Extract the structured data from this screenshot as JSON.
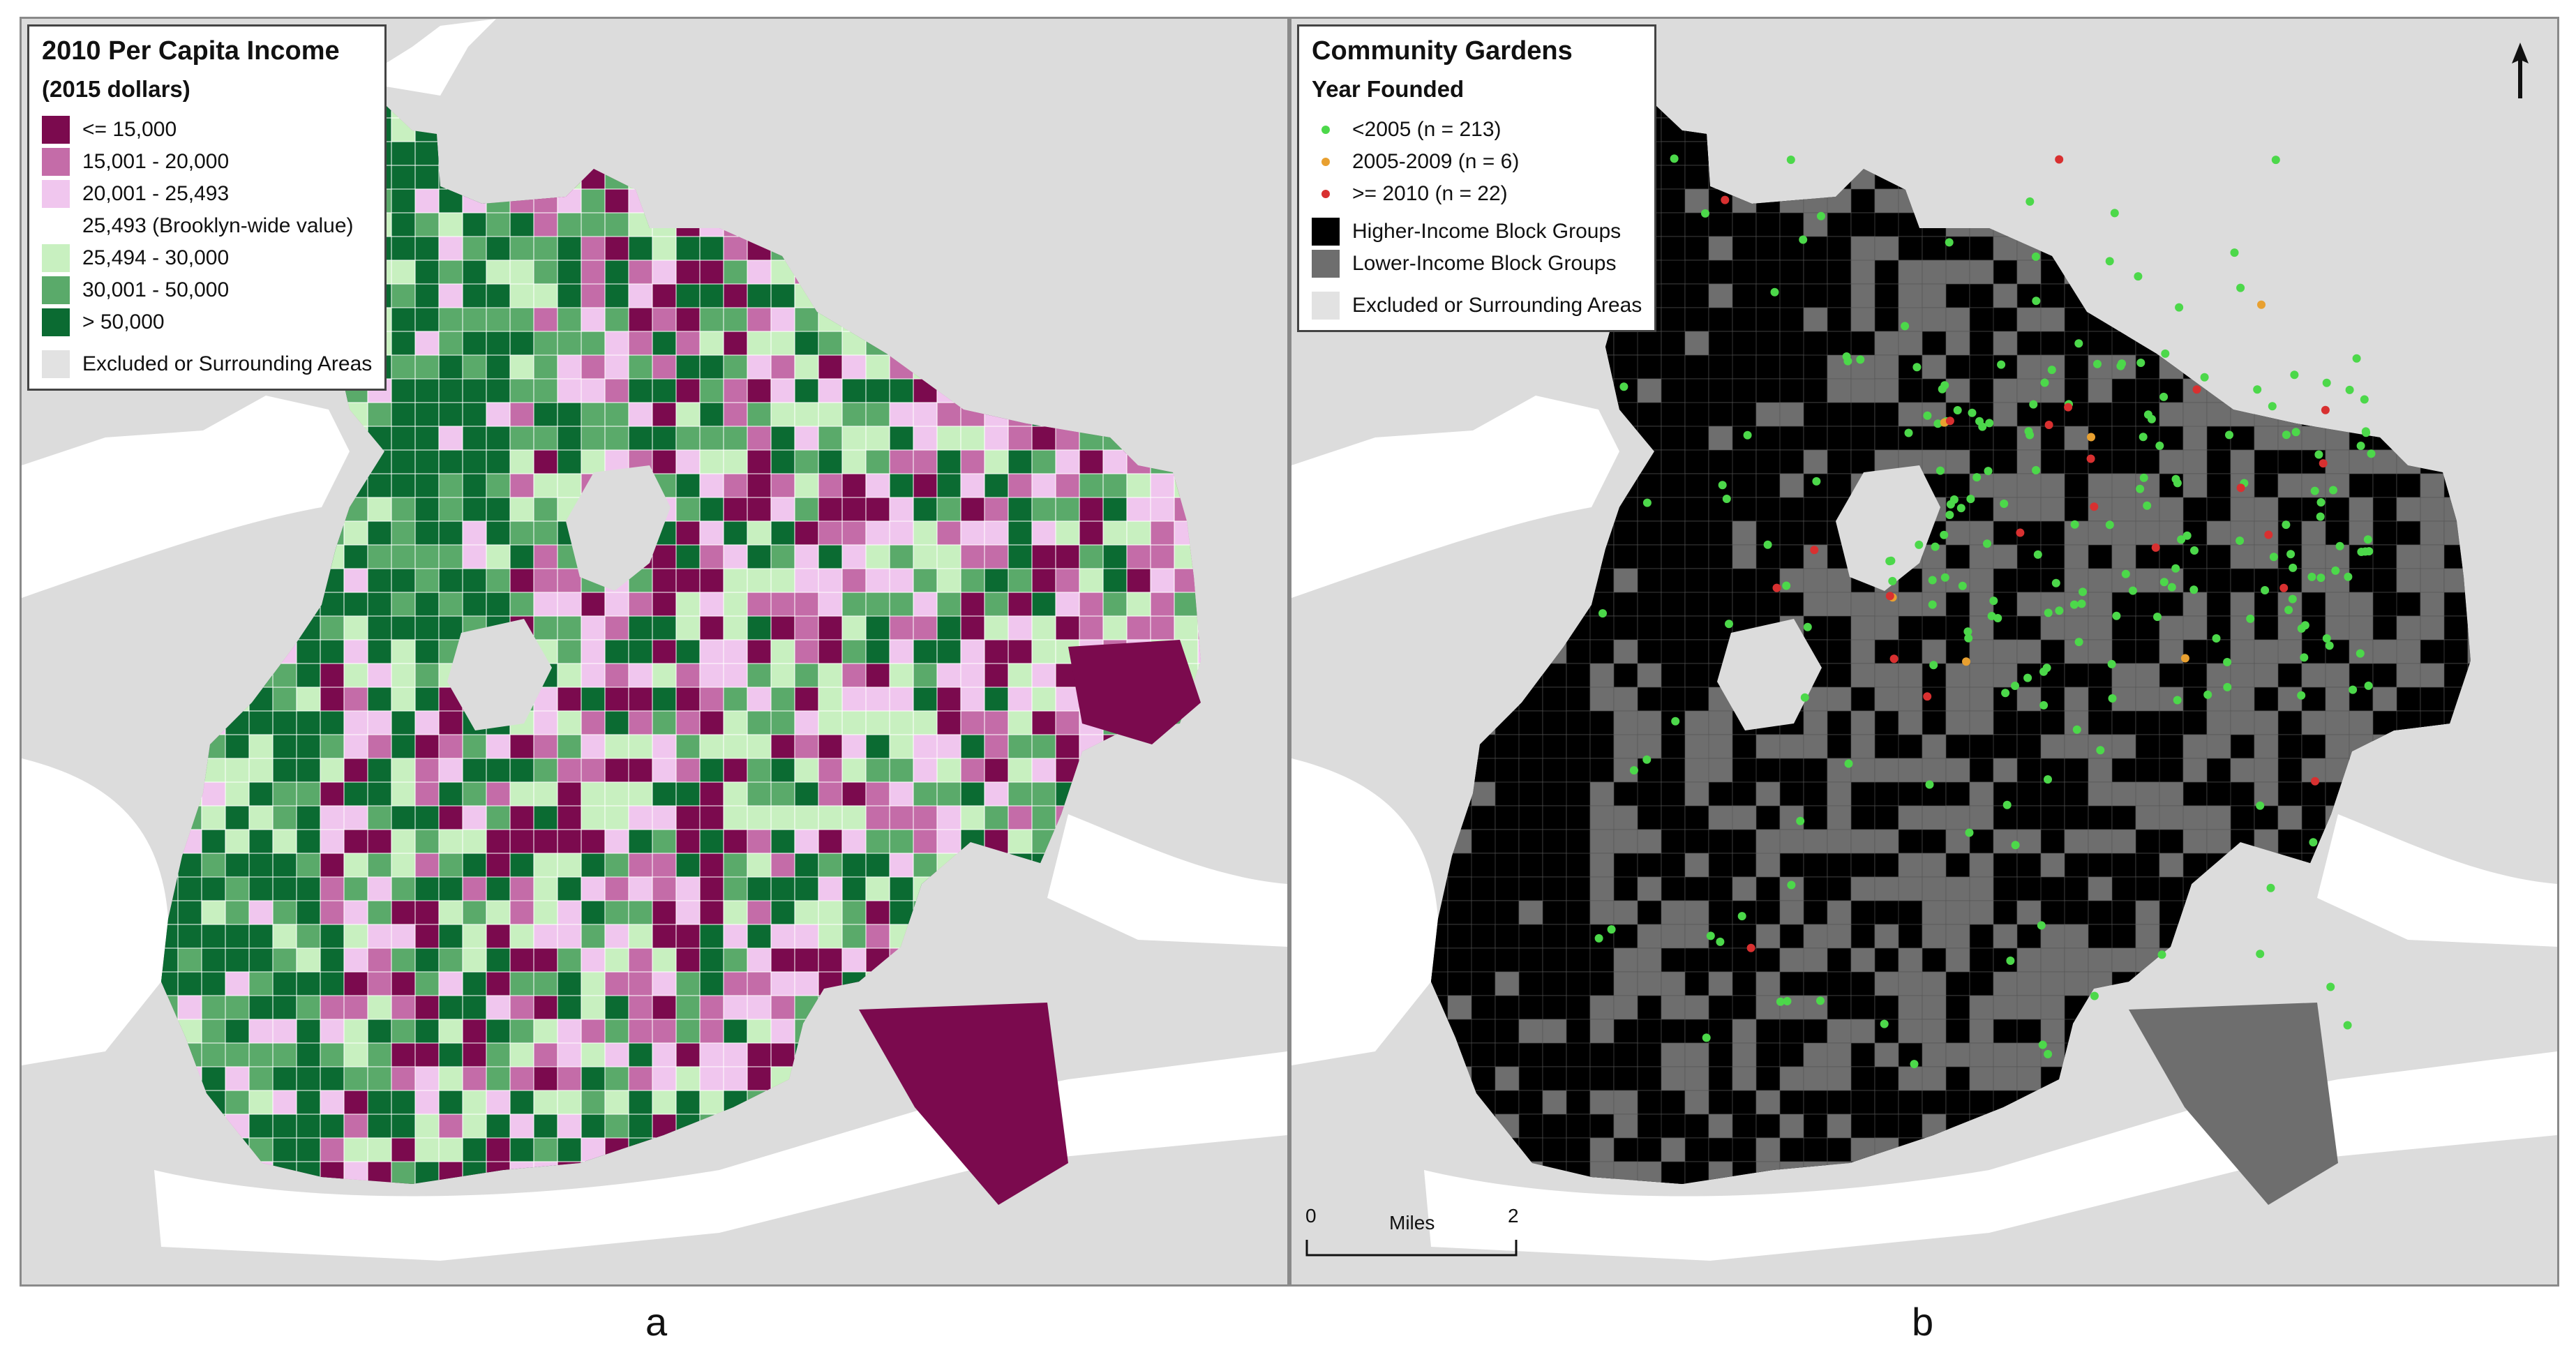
{
  "panels": [
    {
      "label": "a"
    },
    {
      "label": "b"
    }
  ],
  "legend_a": {
    "title": "2010 Per Capita Income",
    "subtitle": "(2015 dollars)",
    "classes": [
      {
        "label": "<= 15,000",
        "color": "#7b0a4e"
      },
      {
        "label": "15,001 - 20,000",
        "color": "#c46ca8"
      },
      {
        "label": "20,001 - 25,493",
        "color": "#f0c6ee"
      },
      {
        "label": "25,493 (Brooklyn-wide value)",
        "color": "#ffffff"
      },
      {
        "label": "25,494 - 30,000",
        "color": "#c8f0c0"
      },
      {
        "label": "30,001 - 50,000",
        "color": "#5aaa6a"
      },
      {
        "label": "> 50,000",
        "color": "#0b6b32"
      }
    ],
    "excluded": {
      "label": "Excluded or Surrounding Areas",
      "color": "#e2e2e2"
    }
  },
  "legend_b": {
    "title": "Community Gardens",
    "subtitle": "Year Founded",
    "points": [
      {
        "label": "<2005 (n = 213)",
        "color": "#4cd84a"
      },
      {
        "label": "2005-2009 (n = 6)",
        "color": "#e8a030"
      },
      {
        "label": ">= 2010 (n = 22)",
        "color": "#d83030"
      }
    ],
    "areas": [
      {
        "label": "Higher-Income Block Groups",
        "color": "#000000"
      },
      {
        "label": "Lower-Income Block Groups",
        "color": "#6e6e6e"
      },
      {
        "label": "Excluded or Surrounding Areas",
        "color": "#e2e2e2"
      }
    ]
  },
  "scale": {
    "start": "0",
    "end": "2",
    "unit": "Miles"
  },
  "north_arrow": "north-arrow-icon",
  "colors": {
    "water": "#ffffff",
    "land": "#dcdcdc",
    "frame": "#8a8a8a"
  }
}
